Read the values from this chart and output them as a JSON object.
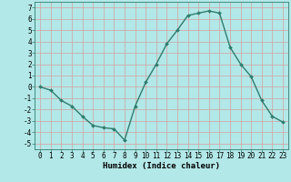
{
  "x": [
    0,
    1,
    2,
    3,
    4,
    5,
    6,
    7,
    8,
    9,
    10,
    11,
    12,
    13,
    14,
    15,
    16,
    17,
    18,
    19,
    20,
    21,
    22,
    23
  ],
  "y": [
    0,
    -0.3,
    -1.2,
    -1.7,
    -2.6,
    -3.4,
    -3.6,
    -3.7,
    -4.7,
    -1.7,
    0.4,
    2.0,
    3.8,
    5.0,
    6.3,
    6.5,
    6.7,
    6.5,
    3.5,
    2.0,
    0.9,
    -1.2,
    -2.6,
    -3.1
  ],
  "line_color": "#2e7d6e",
  "marker": "D",
  "marker_size": 2.0,
  "bg_color": "#b3e8e8",
  "grid_color": "#d4a0a0",
  "xlabel": "Humidex (Indice chaleur)",
  "xlim": [
    -0.5,
    23.5
  ],
  "ylim": [
    -5.5,
    7.5
  ],
  "yticks": [
    -5,
    -4,
    -3,
    -2,
    -1,
    0,
    1,
    2,
    3,
    4,
    5,
    6,
    7
  ],
  "xticks": [
    0,
    1,
    2,
    3,
    4,
    5,
    6,
    7,
    8,
    9,
    10,
    11,
    12,
    13,
    14,
    15,
    16,
    17,
    18,
    19,
    20,
    21,
    22,
    23
  ],
  "tick_fontsize": 5.5,
  "xlabel_fontsize": 6.5,
  "linewidth": 1.0
}
